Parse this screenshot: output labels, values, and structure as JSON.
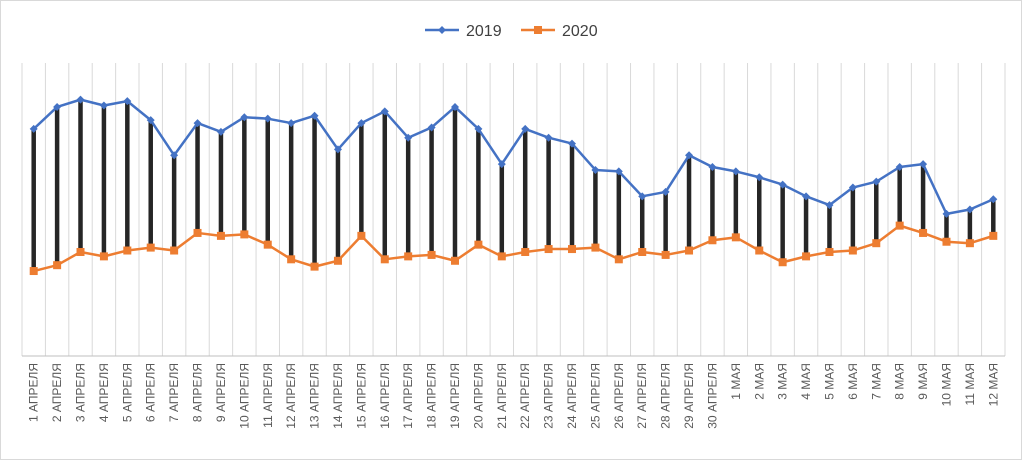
{
  "chart_data": {
    "type": "line",
    "title": "",
    "xlabel": "",
    "ylabel": "",
    "ylim": [
      0,
      100
    ],
    "grid": true,
    "legend_position": "top",
    "categories": [
      "1 АПРЕЛЯ",
      "2 АПРЕЛЯ",
      "3 АПРЕЛЯ",
      "4 АПРЕЛЯ",
      "5 АПРЕЛЯ",
      "6 АПРЕЛЯ",
      "7 АПРЕЛЯ",
      "8 АПРЕЛЯ",
      "9 АПРЕЛЯ",
      "10 АПРЕЛЯ",
      "11 АПРЕЛЯ",
      "12 АПРЕЛЯ",
      "13 АПРЕЛЯ",
      "14 АПРЕЛЯ",
      "15 АПРЕЛЯ",
      "16 АПРЕЛЯ",
      "17 АПРЕЛЯ",
      "18 АПРЕЛЯ",
      "19 АПРЕЛЯ",
      "20 АПРЕЛЯ",
      "21 АПРЕЛЯ",
      "22 АПРЕЛЯ",
      "23 АПРЕЛЯ",
      "24 АПРЕЛЯ",
      "25 АПРЕЛЯ",
      "26 АПРЕЛЯ",
      "27 АПРЕЛЯ",
      "28 АПРЕЛЯ",
      "29 АПРЕЛЯ",
      "30 АПРЕЛЯ",
      "1 МАЯ",
      "2 МАЯ",
      "3 МАЯ",
      "4 МАЯ",
      "5 МАЯ",
      "6 МАЯ",
      "7 МАЯ",
      "8 МАЯ",
      "9 МАЯ",
      "10 МАЯ",
      "11 МАЯ",
      "12 МАЯ"
    ],
    "series": [
      {
        "name": "2019",
        "color": "#4472c4",
        "marker": "diamond",
        "values": [
          77.5,
          85.0,
          87.5,
          85.5,
          87.0,
          80.5,
          68.5,
          79.5,
          76.5,
          81.5,
          81.0,
          79.5,
          82.0,
          70.5,
          79.5,
          83.5,
          74.5,
          78.0,
          85.0,
          77.5,
          65.5,
          77.5,
          74.5,
          72.5,
          63.5,
          63.0,
          54.5,
          56.0,
          68.5,
          64.5,
          63.0,
          61.0,
          58.5,
          54.5,
          51.5,
          57.5,
          59.5,
          64.5,
          65.5,
          48.5,
          50.0,
          53.5
        ]
      },
      {
        "name": "2020",
        "color": "#ed7d31",
        "marker": "square",
        "values": [
          29.0,
          31.0,
          35.5,
          34.0,
          36.0,
          37.0,
          36.0,
          42.0,
          41.0,
          41.5,
          38.0,
          33.0,
          30.5,
          32.5,
          41.0,
          33.0,
          34.0,
          34.5,
          32.5,
          38.0,
          34.0,
          35.5,
          36.5,
          36.5,
          37.0,
          33.0,
          35.5,
          34.5,
          36.0,
          39.5,
          40.5,
          36.0,
          32.0,
          34.0,
          35.5,
          36.0,
          38.5,
          44.5,
          42.0,
          39.0,
          38.5,
          41.0
        ]
      }
    ],
    "high_low_lines": {
      "color": "#262626"
    }
  }
}
